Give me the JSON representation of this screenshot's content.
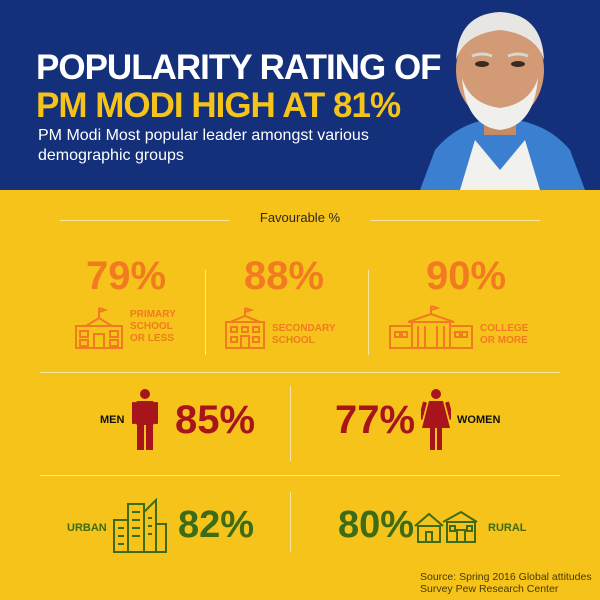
{
  "header": {
    "title_line1": "POPULARITY RATING OF",
    "title_line2": "PM MODI HIGH AT 81%",
    "subtitle": "PM Modi Most popular leader amongst various demographic groups"
  },
  "favourable_label": "Favourable %",
  "education": [
    {
      "value": "79%",
      "label_line1": "PRIMARY",
      "label_line2": "SCHOOL",
      "label_line3": "OR LESS",
      "icon": "primary-school-icon"
    },
    {
      "value": "88%",
      "label_line1": "SECONDARY",
      "label_line2": "SCHOOL",
      "icon": "secondary-school-icon"
    },
    {
      "value": "90%",
      "label_line1": "COLLEGE",
      "label_line2": "OR MORE",
      "icon": "college-icon"
    }
  ],
  "gender": [
    {
      "label": "MEN",
      "value": "85%",
      "icon": "man-icon"
    },
    {
      "label": "WOMEN",
      "value": "77%",
      "icon": "woman-icon"
    }
  ],
  "location": [
    {
      "label": "URBAN",
      "value": "82%",
      "icon": "city-buildings-icon"
    },
    {
      "label": "RURAL",
      "value": "80%",
      "icon": "rural-houses-icon"
    }
  ],
  "source_line1": "Source: Spring 2016 Global attitudes",
  "source_line2": "Survey Pew Research Center",
  "colors": {
    "header_bg": "#14307a",
    "page_bg": "#f5c319",
    "education": "#f27b21",
    "gender": "#a8141b",
    "location": "#3d6b16"
  }
}
